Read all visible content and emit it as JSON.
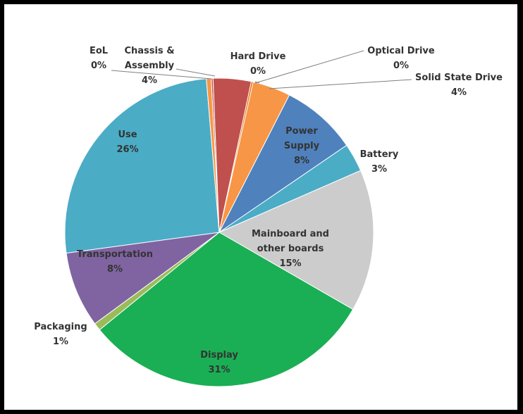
{
  "chart_data": {
    "type": "pie",
    "start_angle_deg": -3,
    "slices": [
      {
        "name": "Hard Drive",
        "value_label": "0%",
        "value": 0.2,
        "color": "#c0504d"
      },
      {
        "name": "Chassis & Assembly",
        "value_label": "4%",
        "value": 4,
        "color": "#c0504d"
      },
      {
        "name": "Optical Drive",
        "value_label": "0%",
        "value": 0.2,
        "color": "#e36c0a"
      },
      {
        "name": "Solid State Drive",
        "value_label": "4%",
        "value": 4,
        "color": "#f79646"
      },
      {
        "name": "Power Supply",
        "value_label": "8%",
        "value": 8,
        "color": "#4f81bd"
      },
      {
        "name": "Battery",
        "value_label": "3%",
        "value": 3,
        "color": "#4bacc6"
      },
      {
        "name": "Mainboard and other boards",
        "value_label": "15%",
        "value": 15,
        "color": "#cccccc"
      },
      {
        "name": "Display",
        "value_label": "31%",
        "value": 31,
        "color": "#1aaf54"
      },
      {
        "name": "Packaging",
        "value_label": "1%",
        "value": 0.8,
        "color": "#9bbb59"
      },
      {
        "name": "Transportation",
        "value_label": "8%",
        "value": 8,
        "color": "#8064a2"
      },
      {
        "name": "Use",
        "value_label": "26%",
        "value": 26,
        "color": "#4bacc6"
      },
      {
        "name": "EoL",
        "value_label": "0%",
        "value": 0.5,
        "color": "#f79646"
      }
    ],
    "labels": [
      {
        "key": "eol",
        "lines": [
          "EoL",
          "0%"
        ]
      },
      {
        "key": "chassis",
        "lines": [
          "Chassis &",
          "Assembly",
          "4%"
        ]
      },
      {
        "key": "hard_drive",
        "lines": [
          "Hard Drive",
          "0%"
        ]
      },
      {
        "key": "optical",
        "lines": [
          "Optical Drive",
          "0%"
        ]
      },
      {
        "key": "ssd",
        "lines": [
          "Solid State Drive",
          "4%"
        ]
      },
      {
        "key": "power",
        "lines": [
          "Power",
          "Supply",
          "8%"
        ]
      },
      {
        "key": "battery",
        "lines": [
          "Battery",
          "3%"
        ]
      },
      {
        "key": "mainboard",
        "lines": [
          "Mainboard and",
          "other boards",
          "15%"
        ]
      },
      {
        "key": "display",
        "lines": [
          "Display",
          "31%"
        ]
      },
      {
        "key": "packaging",
        "lines": [
          "Packaging",
          "1%"
        ]
      },
      {
        "key": "transport",
        "lines": [
          "Transportation",
          "8%"
        ]
      },
      {
        "key": "use",
        "lines": [
          "Use",
          "26%"
        ]
      }
    ]
  }
}
